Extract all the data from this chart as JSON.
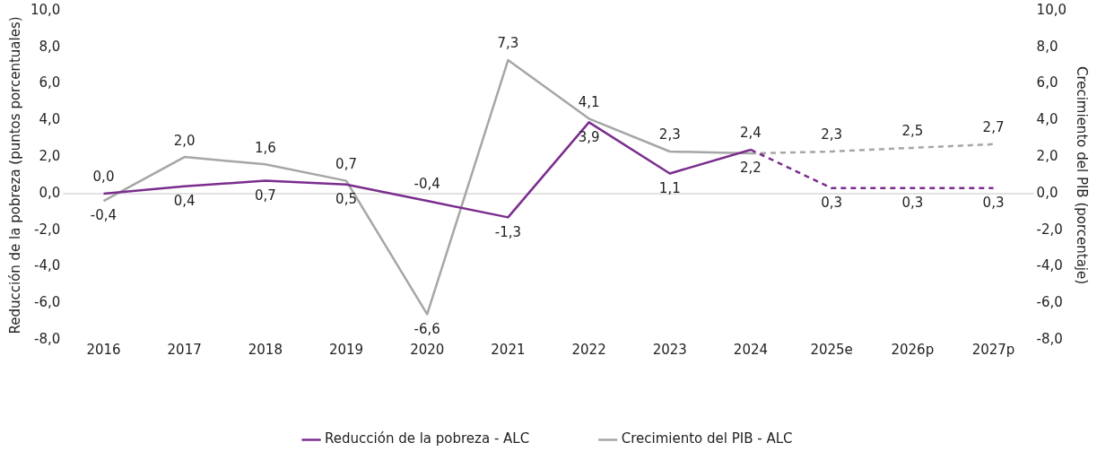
{
  "chart_data": {
    "type": "line",
    "categories": [
      "2016",
      "2017",
      "2018",
      "2019",
      "2020",
      "2021",
      "2022",
      "2023",
      "2024",
      "2025e",
      "2026p",
      "2027p"
    ],
    "ylabel": "Reducción de la pobreza (puntos porcentuales)",
    "y2label": "Crecimiento del PIB (porcentaje)",
    "ylim": [
      -8,
      10
    ],
    "yticks": [
      {
        "value": -8,
        "label": "-8,0"
      },
      {
        "value": -6,
        "label": "-6,0"
      },
      {
        "value": -4,
        "label": "-4,0"
      },
      {
        "value": -2,
        "label": "-2,0"
      },
      {
        "value": 0,
        "label": "0,0"
      },
      {
        "value": 2,
        "label": "2,0"
      },
      {
        "value": 4,
        "label": "4,0"
      },
      {
        "value": 6,
        "label": "6,0"
      },
      {
        "value": 8,
        "label": "8,0"
      },
      {
        "value": 10,
        "label": "10,0"
      }
    ],
    "y2lim": [
      -8,
      10
    ],
    "y2ticks": [
      {
        "value": -8,
        "label": "-8,0"
      },
      {
        "value": -6,
        "label": "-6,0"
      },
      {
        "value": -4,
        "label": "-4,0"
      },
      {
        "value": -2,
        "label": "-2,0"
      },
      {
        "value": 0,
        "label": "0,0"
      },
      {
        "value": 2,
        "label": "2,0"
      },
      {
        "value": 4,
        "label": "4,0"
      },
      {
        "value": 6,
        "label": "6,0"
      },
      {
        "value": 8,
        "label": "8,0"
      },
      {
        "value": 10,
        "label": "10,0"
      }
    ],
    "marker": "none",
    "legend": "bottom",
    "ref_lines": [
      {
        "axis": "y",
        "value": 0,
        "color": "#d9d9d9"
      }
    ],
    "series": [
      {
        "name": "Reducción de la pobreza - ALC",
        "color": "#7b2d8e",
        "line_style": "solid",
        "values": [
          0.0,
          0.4,
          0.7,
          0.5,
          -0.4,
          -1.3,
          3.9,
          1.1,
          2.4,
          null,
          null,
          null
        ],
        "value_labels": [
          "0,0",
          "0,4",
          "0,7",
          "0,5",
          "-0,4",
          "-1,3",
          "3,9",
          "1,1",
          "2,4",
          null,
          null,
          null
        ]
      },
      {
        "color": "#7b2d8e",
        "line_style": "dashed",
        "values": [
          null,
          null,
          null,
          null,
          null,
          null,
          null,
          null,
          2.4,
          0.3,
          0.3,
          0.3
        ],
        "value_labels": [
          null,
          null,
          null,
          null,
          null,
          null,
          null,
          null,
          null,
          "0,3",
          "0,3",
          "0,3"
        ]
      },
      {
        "name": "Crecimiento del PIB - ALC",
        "color": "#a6a6a6",
        "line_style": "solid",
        "values": [
          -0.4,
          2.0,
          1.6,
          0.7,
          -6.6,
          7.3,
          4.1,
          2.3,
          2.2,
          null,
          null,
          null
        ],
        "value_labels": [
          "-0,4",
          "2,0",
          "1,6",
          "0,7",
          "-6,6",
          "7,3",
          "4,1",
          "2,3",
          "2,2",
          null,
          null,
          null
        ]
      },
      {
        "color": "#a6a6a6",
        "line_style": "dashed",
        "values": [
          null,
          null,
          null,
          null,
          null,
          null,
          null,
          null,
          2.2,
          2.3,
          2.5,
          2.7
        ],
        "value_labels": [
          null,
          null,
          null,
          null,
          null,
          null,
          null,
          null,
          null,
          "2,3",
          "2,5",
          "2,7"
        ]
      }
    ]
  }
}
